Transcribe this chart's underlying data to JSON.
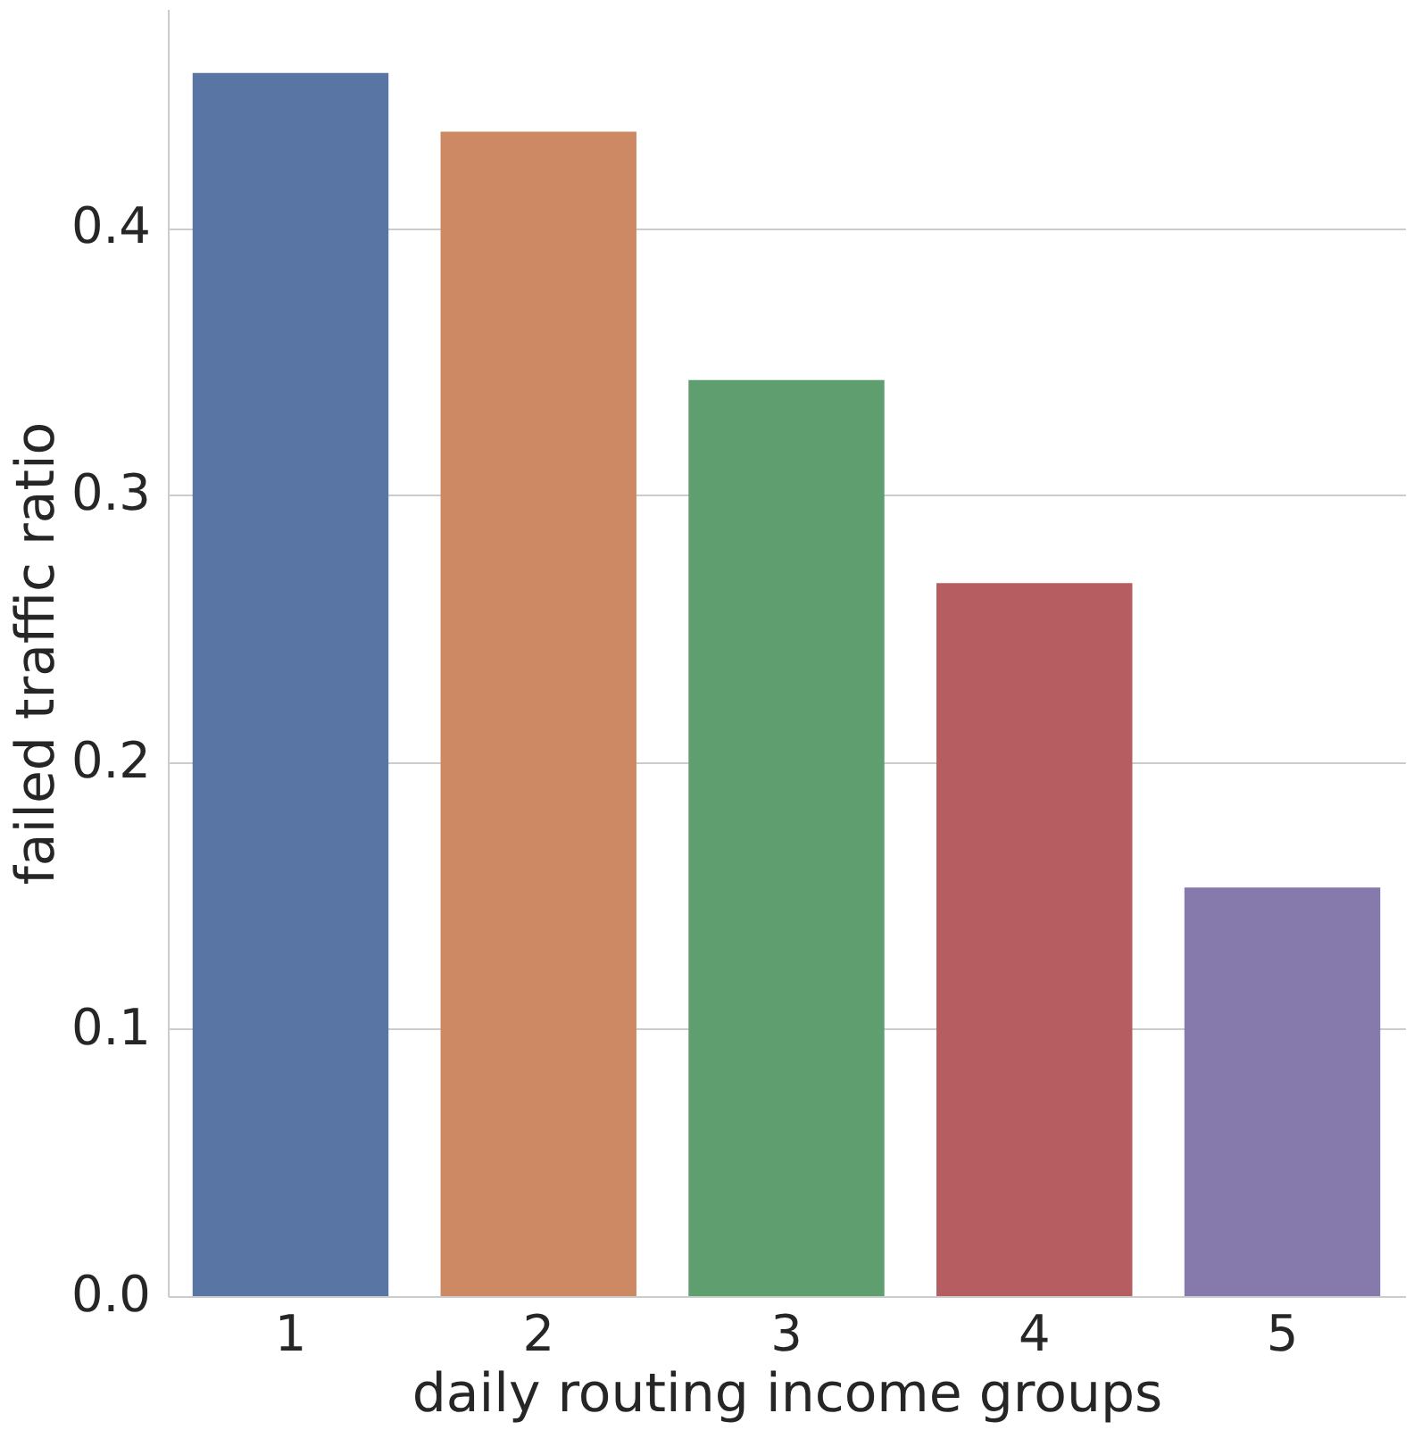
{
  "chart_data": {
    "type": "bar",
    "xlabel": "daily routing income groups",
    "ylabel": "failed traffic ratio",
    "categories": [
      "1",
      "2",
      "3",
      "4",
      "5"
    ],
    "values": [
      0.458,
      0.436,
      0.343,
      0.267,
      0.153
    ],
    "colors": [
      "#5875a4",
      "#cc8963",
      "#5f9e6e",
      "#b55d60",
      "#857aab"
    ],
    "ylim": [
      0,
      0.482
    ],
    "yticks": [
      {
        "value": 0,
        "label": "0.0"
      },
      0.1,
      0.2,
      0.3,
      0.4
    ],
    "grid": "y",
    "legend": false
  }
}
